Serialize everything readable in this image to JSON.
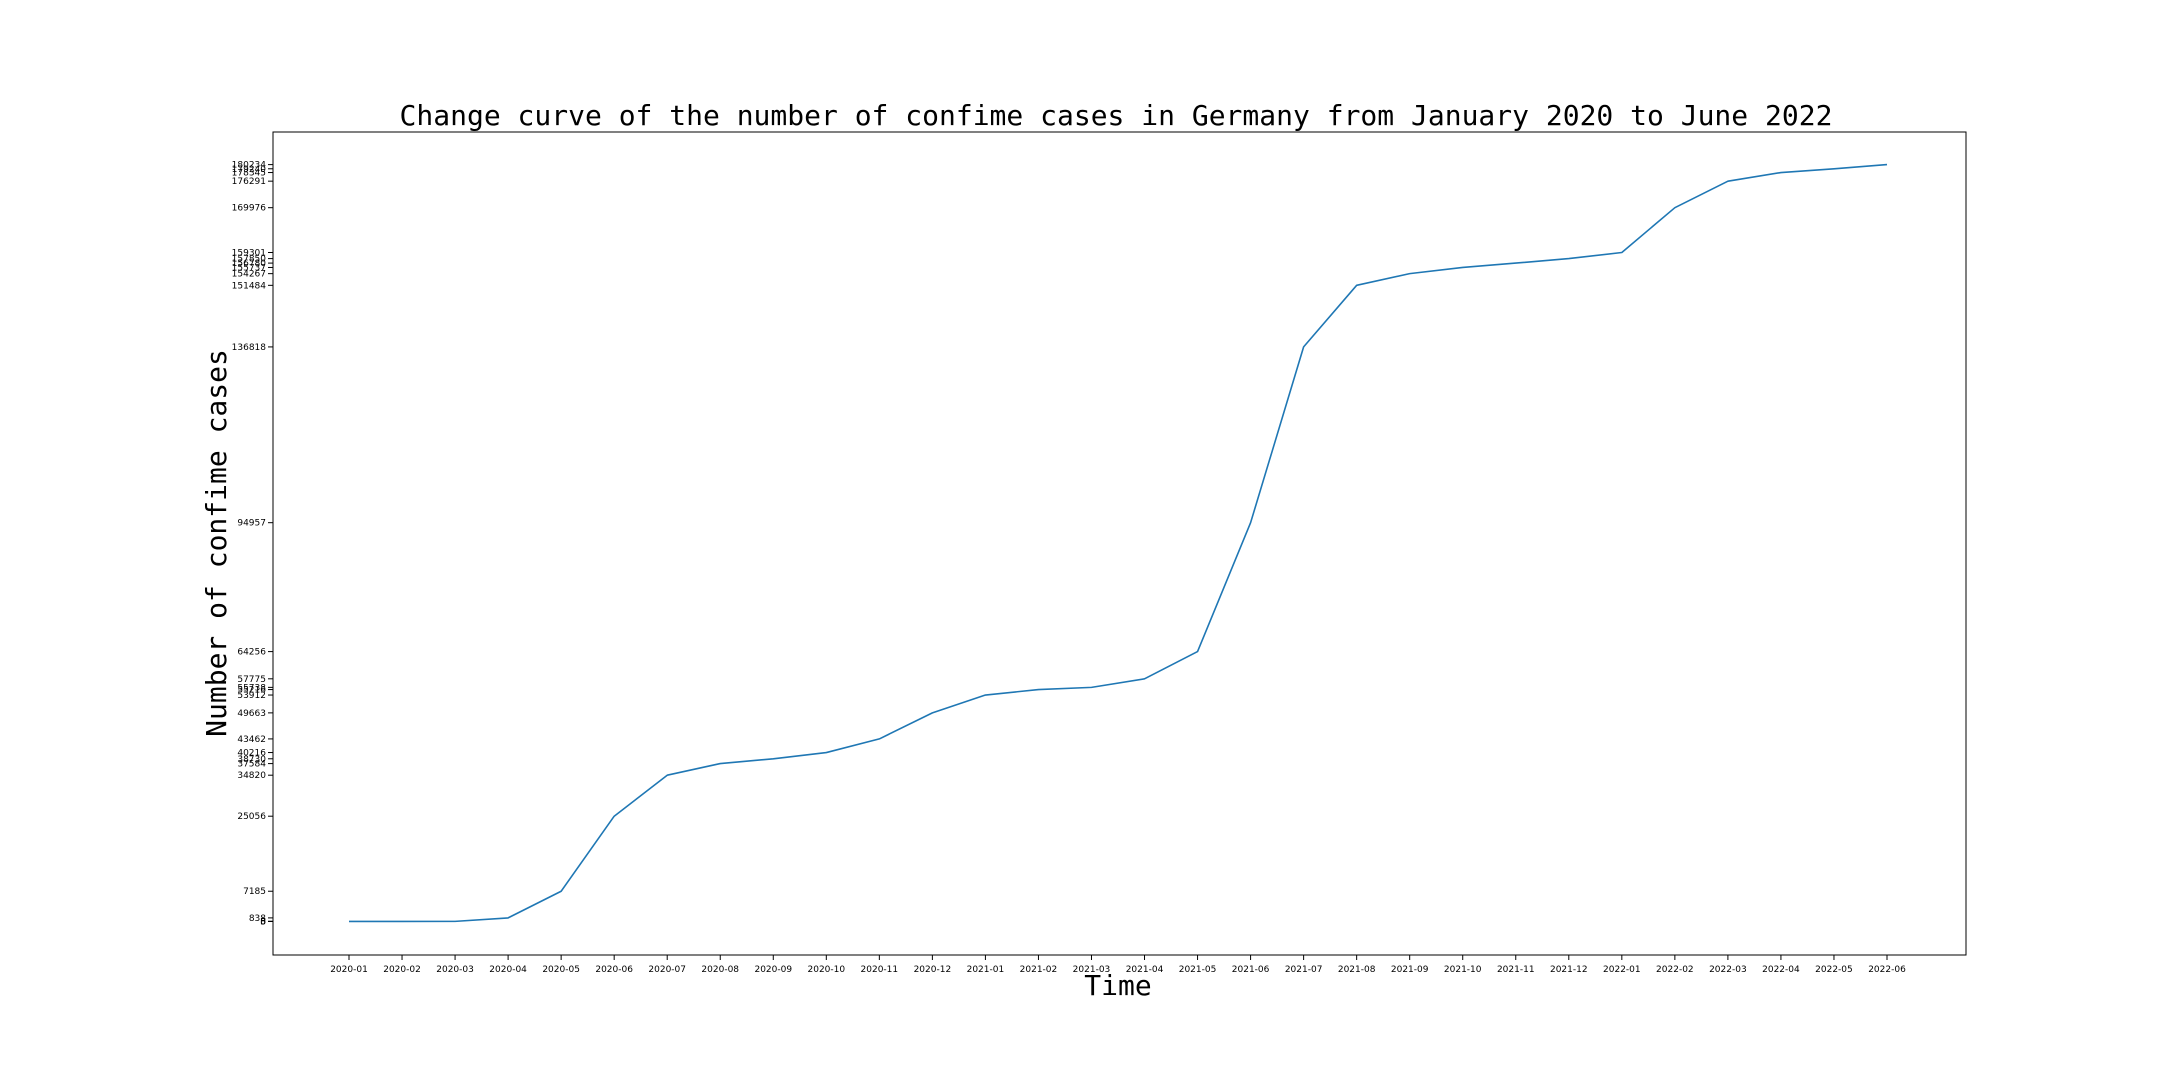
{
  "chart_data": {
    "type": "line",
    "title": "Change curve of the number of confime cases in Germany from January 2020 to June 2022",
    "xlabel": "Time",
    "ylabel": "Number of confime cases",
    "grid": false,
    "legend": "none",
    "colors": {
      "line": "#1f77b4"
    },
    "x": [
      "2020-01",
      "2020-02",
      "2020-03",
      "2020-04",
      "2020-05",
      "2020-06",
      "2020-07",
      "2020-08",
      "2020-09",
      "2020-10",
      "2020-11",
      "2020-12",
      "2021-01",
      "2021-02",
      "2021-03",
      "2021-04",
      "2021-05",
      "2021-06",
      "2021-07",
      "2021-08",
      "2021-09",
      "2021-10",
      "2021-11",
      "2021-12",
      "2022-01",
      "2022-02",
      "2022-03",
      "2022-04",
      "2022-05",
      "2022-06"
    ],
    "series": [
      {
        "values": [
          0,
          5,
          8,
          838,
          7185,
          25056,
          34820,
          37584,
          38730,
          40216,
          43462,
          49663,
          53912,
          55216,
          55738,
          57775,
          64256,
          94957,
          136818,
          151484,
          154267,
          155737,
          156780,
          157850,
          159301,
          169976,
          176291,
          178345,
          179240,
          180234
        ]
      }
    ],
    "ylim": [
      -8000,
      188000
    ],
    "yticks": [
      0,
      5,
      8,
      838,
      7185,
      25056,
      34820,
      37584,
      38730,
      40216,
      43462,
      49663,
      53912,
      55216,
      55738,
      57775,
      64256,
      94957,
      136818,
      151484,
      154267,
      155737,
      156780,
      157850,
      159301,
      169976,
      176291,
      178345,
      179240,
      180234
    ]
  }
}
